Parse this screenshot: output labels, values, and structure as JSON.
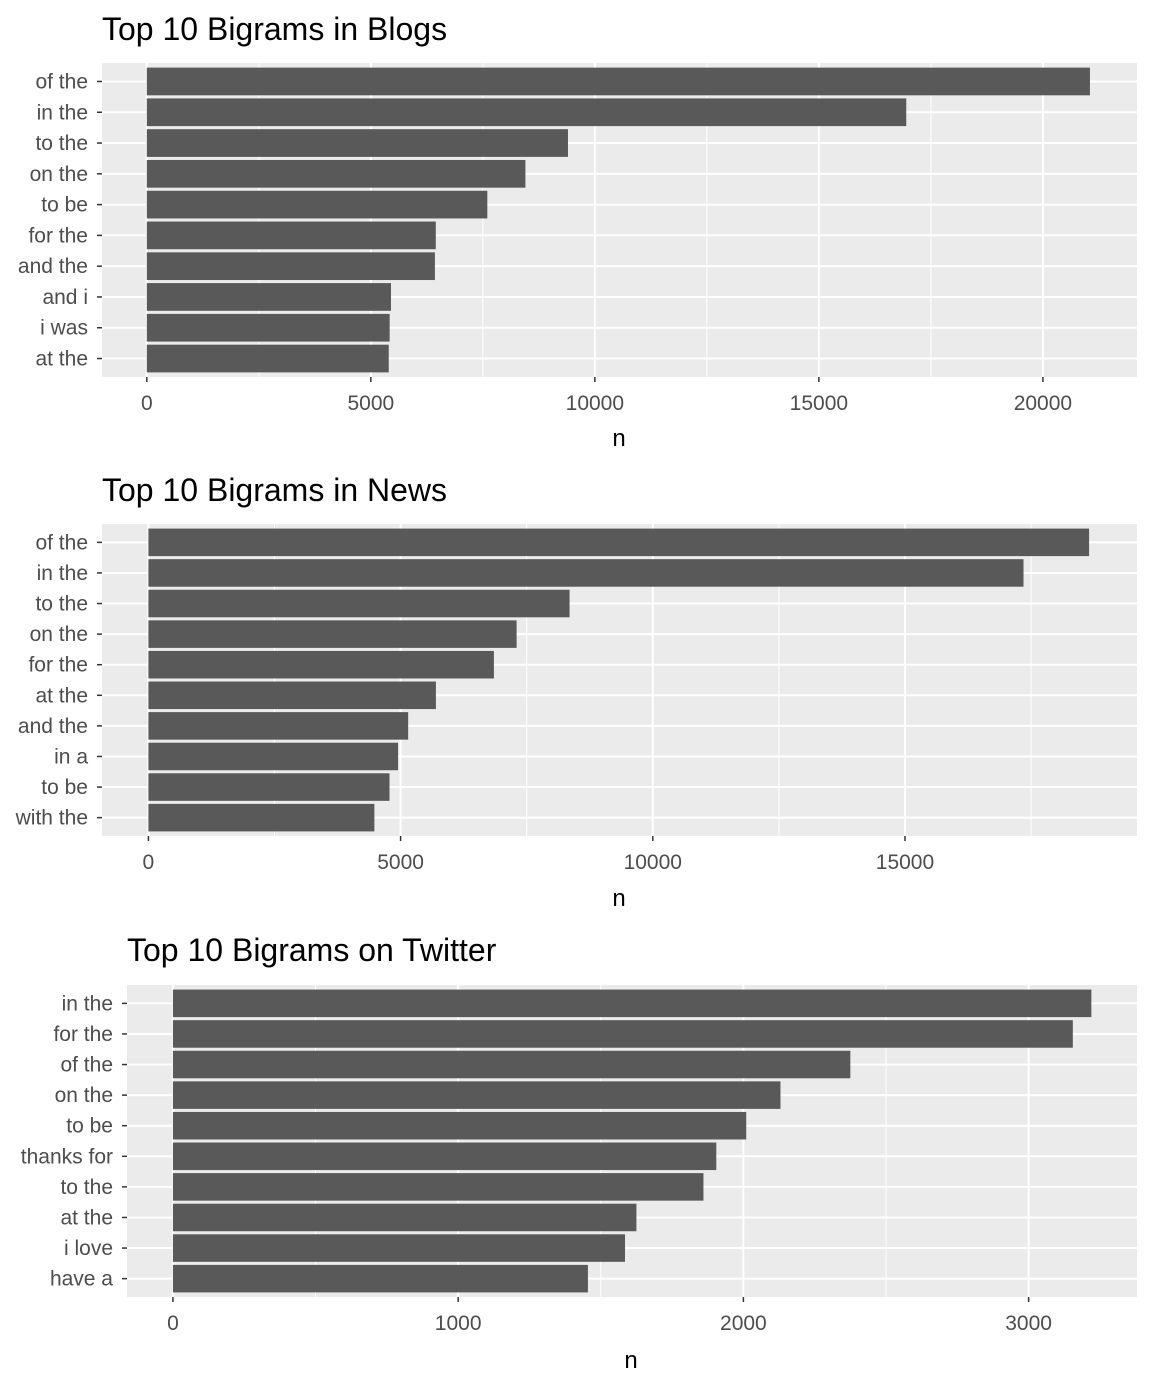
{
  "chart_data": [
    {
      "type": "bar",
      "orientation": "horizontal",
      "title": "Top 10 Bigrams in Blogs",
      "xlabel": "n",
      "ylabel": "",
      "categories": [
        "of the",
        "in the",
        "to the",
        "on the",
        "to be",
        "for the",
        "and the",
        "and i",
        "i was",
        "at the"
      ],
      "values": [
        21050,
        16950,
        9400,
        8450,
        7600,
        6450,
        6430,
        5450,
        5420,
        5400
      ],
      "xlim": [
        -1000,
        22100
      ],
      "xticks": [
        0,
        5000,
        10000,
        15000,
        20000
      ],
      "xtick_labels": [
        "0",
        "5000",
        "10000",
        "15000",
        "20000"
      ],
      "grid": true,
      "colors": {
        "bar": "#595959",
        "panel": "#ebebeb",
        "grid": "#ffffff"
      }
    },
    {
      "type": "bar",
      "orientation": "horizontal",
      "title": "Top 10 Bigrams in News",
      "xlabel": "n",
      "ylabel": "",
      "categories": [
        "of the",
        "in the",
        "to the",
        "on the",
        "for the",
        "at the",
        "and the",
        "in a",
        "to be",
        "with the"
      ],
      "values": [
        18650,
        17350,
        8350,
        7300,
        6850,
        5700,
        5150,
        4950,
        4780,
        4480
      ],
      "xlim": [
        -920,
        19600
      ],
      "xticks": [
        0,
        5000,
        10000,
        15000
      ],
      "xtick_labels": [
        "0",
        "5000",
        "10000",
        "15000"
      ],
      "grid": true,
      "colors": {
        "bar": "#595959",
        "panel": "#ebebeb",
        "grid": "#ffffff"
      }
    },
    {
      "type": "bar",
      "orientation": "horizontal",
      "title": "Top 10 Bigrams on Twitter",
      "xlabel": "n",
      "ylabel": "",
      "categories": [
        "in the",
        "for the",
        "of the",
        "on the",
        "to be",
        "thanks for",
        "to the",
        "at the",
        "i love",
        "have a"
      ],
      "values": [
        3220,
        3155,
        2375,
        2130,
        2010,
        1905,
        1860,
        1625,
        1585,
        1455
      ],
      "xlim": [
        -161,
        3380
      ],
      "xticks": [
        0,
        1000,
        2000,
        3000
      ],
      "xtick_labels": [
        "0",
        "1000",
        "2000",
        "3000"
      ],
      "grid": true,
      "colors": {
        "bar": "#595959",
        "panel": "#ebebeb",
        "grid": "#ffffff"
      }
    }
  ]
}
